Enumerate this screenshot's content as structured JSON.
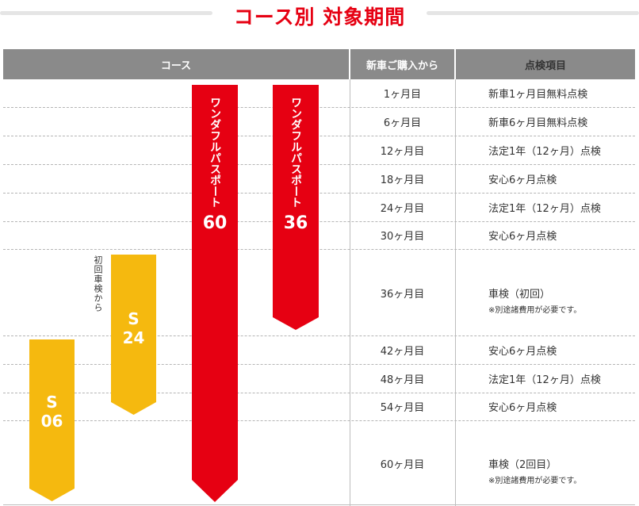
{
  "title": "コース別 対象期間",
  "headers": {
    "course": "コース",
    "since": "新車ご購入から",
    "item": "点検項目"
  },
  "rows": [
    {
      "month": "1ヶ月目",
      "item": "新車1ヶ月目無料点検",
      "note": ""
    },
    {
      "month": "6ヶ月目",
      "item": "新車6ヶ月目無料点検",
      "note": ""
    },
    {
      "month": "12ヶ月目",
      "item": "法定1年（12ヶ月）点検",
      "note": ""
    },
    {
      "month": "18ヶ月目",
      "item": "安心6ヶ月点検",
      "note": ""
    },
    {
      "month": "24ヶ月目",
      "item": "法定1年（12ヶ月）点検",
      "note": ""
    },
    {
      "month": "30ヶ月目",
      "item": "安心6ヶ月点検",
      "note": ""
    },
    {
      "month": "36ヶ月目",
      "item": "車検（初回）",
      "note": "※別途諸費用が必要です。"
    },
    {
      "month": "42ヶ月目",
      "item": "安心6ヶ月点検",
      "note": ""
    },
    {
      "month": "48ヶ月目",
      "item": "法定1年（12ヶ月）点検",
      "note": ""
    },
    {
      "month": "54ヶ月目",
      "item": "安心6ヶ月点検",
      "note": ""
    },
    {
      "month": "60ヶ月目",
      "item": "車検（2回目）",
      "note": "※別途諸費用が必要です。"
    }
  ],
  "courses": {
    "wp60": {
      "label": "ワンダフルパスポート",
      "number": "60",
      "color": "#e60012"
    },
    "wp36": {
      "label": "ワンダフルパスポート",
      "number": "36",
      "color": "#e60012"
    },
    "s24": {
      "letter": "S",
      "number": "24",
      "color": "#f5b90f",
      "note": "初回車検から"
    },
    "s06": {
      "letter": "S",
      "number": "06",
      "color": "#f5b90f"
    }
  }
}
